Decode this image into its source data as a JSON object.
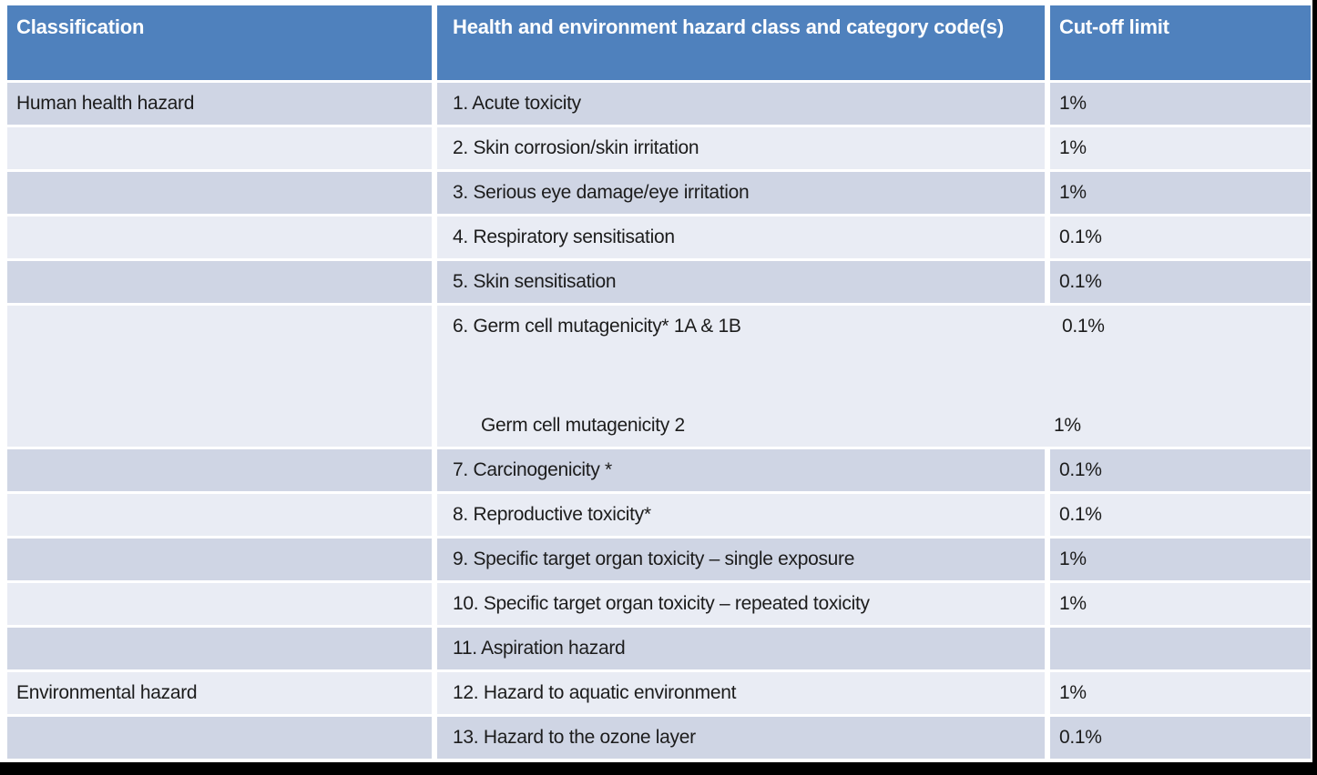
{
  "page": {
    "background": "#ffffff",
    "edge_color": "#000000"
  },
  "table": {
    "colors": {
      "header_bg": "#4f81bd",
      "header_text": "#ffffff",
      "band_dark": "#cfd5e4",
      "band_light": "#e9ecf4",
      "body_text": "#1c1c1c",
      "separator": "#ffffff"
    },
    "header": {
      "columns": [
        "Classification",
        "Health and environment hazard class and category code(s)",
        "Cut-off limit"
      ]
    },
    "rows": [
      {
        "classification": "Human health hazard",
        "hazard": "1. Acute toxicity",
        "cutoff": "1%"
      },
      {
        "classification": "",
        "hazard": "2. Skin corrosion/skin irritation",
        "cutoff": "1%"
      },
      {
        "classification": "",
        "hazard": "3. Serious eye damage/eye irritation",
        "cutoff": "1%"
      },
      {
        "classification": "",
        "hazard": "4. Respiratory sensitisation",
        "cutoff": "0.1%"
      },
      {
        "classification": "",
        "hazard": "5. Skin sensitisation",
        "cutoff": "0.1%"
      },
      {
        "classification": "",
        "merged": true,
        "lines": [
          {
            "hazard": "6. Germ cell mutagenicity* 1A & 1B",
            "cutoff": "0.1%"
          },
          {
            "hazard": "Germ cell mutagenicity 2",
            "cutoff": "1%"
          }
        ]
      },
      {
        "classification": "",
        "hazard": "7. Carcinogenicity *",
        "cutoff": "0.1%"
      },
      {
        "classification": "",
        "hazard": "8. Reproductive toxicity*",
        "cutoff": "0.1%"
      },
      {
        "classification": "",
        "hazard": "9. Specific target organ toxicity – single exposure",
        "cutoff": "1%"
      },
      {
        "classification": "",
        "hazard": "10. Specific target organ toxicity – repeated toxicity",
        "cutoff": "1%"
      },
      {
        "classification": "",
        "hazard": "11. Aspiration hazard",
        "cutoff": ""
      },
      {
        "classification": "Environmental hazard",
        "hazard": "12. Hazard to aquatic environment",
        "cutoff": "1%"
      },
      {
        "classification": "",
        "hazard": "13. Hazard to the ozone layer",
        "cutoff": "0.1%"
      }
    ]
  }
}
